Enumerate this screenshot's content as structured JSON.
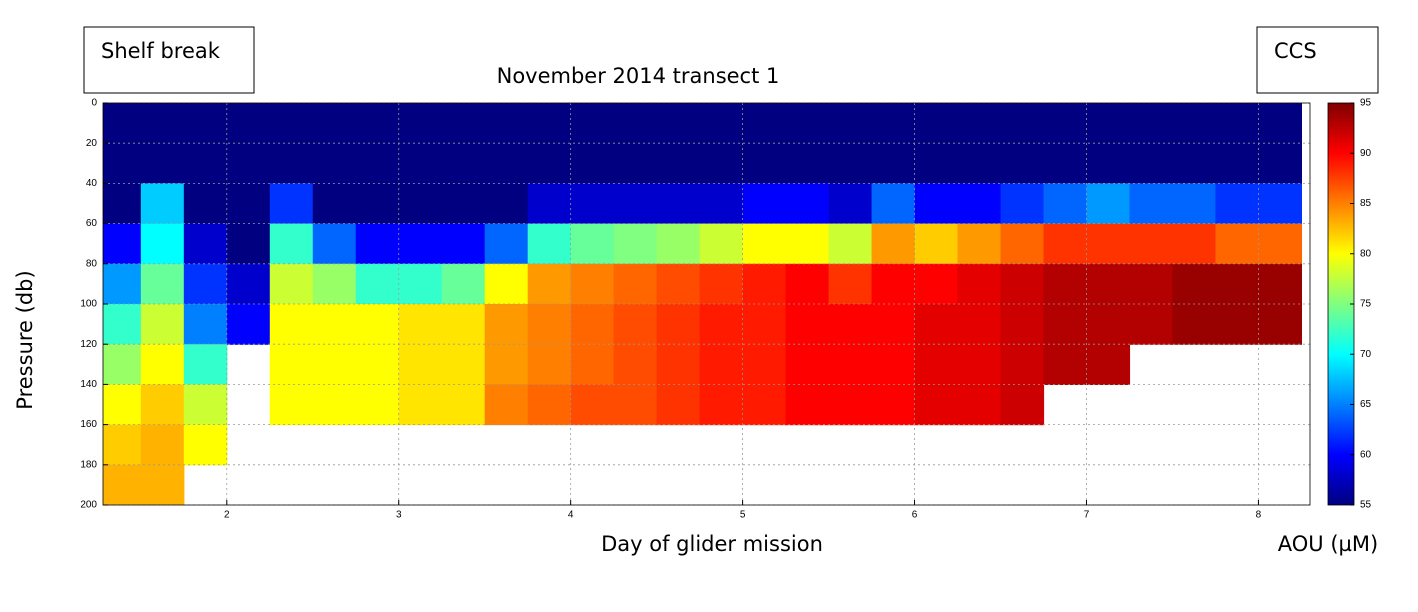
{
  "chart_data": {
    "type": "heatmap",
    "title": "November 2014 transect 1",
    "x_label": "Day of glider mission",
    "y_label": "Pressure (db)",
    "colorbar_label": "AOU (µM)",
    "annotations": [
      "Shelf break",
      "CCS"
    ],
    "x": [
      1.375,
      1.625,
      1.875,
      2.125,
      2.375,
      2.625,
      2.875,
      3.125,
      3.375,
      3.625,
      3.875,
      4.125,
      4.375,
      4.625,
      4.875,
      5.125,
      5.375,
      5.625,
      5.875,
      6.125,
      6.375,
      6.625,
      6.875,
      7.125,
      7.375,
      7.625,
      7.875,
      8.125
    ],
    "y": [
      10,
      30,
      50,
      70,
      90,
      110,
      130,
      150,
      170,
      190
    ],
    "values": [
      [
        55,
        55,
        55,
        60,
        66,
        72,
        76,
        80,
        82,
        83
      ],
      [
        55,
        55,
        68,
        70,
        74,
        78,
        80,
        82,
        83,
        83
      ],
      [
        55,
        55,
        55,
        58,
        62,
        65,
        72,
        78,
        80,
        null
      ],
      [
        55,
        55,
        55,
        55,
        58,
        60,
        null,
        null,
        null,
        null
      ],
      [
        55,
        55,
        62,
        72,
        78,
        80,
        80,
        80,
        null,
        null
      ],
      [
        55,
        55,
        55,
        64,
        76,
        80,
        80,
        80,
        null,
        null
      ],
      [
        55,
        55,
        55,
        60,
        72,
        80,
        80,
        80,
        null,
        null
      ],
      [
        55,
        55,
        55,
        60,
        72,
        81,
        81,
        81,
        null,
        null
      ],
      [
        55,
        55,
        55,
        60,
        74,
        81,
        81,
        81,
        null,
        null
      ],
      [
        55,
        55,
        55,
        64,
        80,
        84,
        84,
        85,
        null,
        null
      ],
      [
        55,
        55,
        58,
        72,
        84,
        85,
        85,
        86,
        null,
        null
      ],
      [
        55,
        55,
        58,
        74,
        85,
        86,
        86,
        87,
        null,
        null
      ],
      [
        55,
        55,
        58,
        75,
        86,
        87,
        87,
        87,
        null,
        null
      ],
      [
        55,
        55,
        58,
        76,
        87,
        88,
        88,
        88,
        null,
        null
      ],
      [
        55,
        55,
        58,
        78,
        88,
        89,
        89,
        89,
        null,
        null
      ],
      [
        55,
        55,
        60,
        80,
        89,
        89,
        89,
        89,
        null,
        null
      ],
      [
        55,
        55,
        60,
        80,
        90,
        90,
        90,
        90,
        null,
        null
      ],
      [
        55,
        55,
        58,
        78,
        88,
        90,
        90,
        90,
        null,
        null
      ],
      [
        55,
        55,
        64,
        84,
        90,
        90,
        90,
        90,
        null,
        null
      ],
      [
        55,
        55,
        60,
        82,
        90,
        91,
        91,
        91,
        null,
        null
      ],
      [
        55,
        55,
        60,
        84,
        91,
        91,
        91,
        91,
        null,
        null
      ],
      [
        55,
        55,
        62,
        86,
        92,
        92,
        92,
        92,
        null,
        null
      ],
      [
        55,
        55,
        64,
        88,
        93,
        93,
        93,
        null,
        null,
        null
      ],
      [
        55,
        55,
        66,
        88,
        93,
        93,
        93,
        null,
        null,
        null
      ],
      [
        55,
        55,
        64,
        88,
        93,
        93,
        null,
        null,
        null,
        null
      ],
      [
        55,
        55,
        64,
        88,
        94,
        94,
        null,
        null,
        null,
        null
      ],
      [
        55,
        55,
        62,
        86,
        94,
        94,
        null,
        null,
        null,
        null
      ],
      [
        55,
        55,
        62,
        86,
        94,
        94,
        null,
        null,
        null,
        null
      ]
    ],
    "xlim": [
      1.28,
      8.3
    ],
    "xticks": [
      2,
      3,
      4,
      5,
      6,
      7,
      8
    ],
    "ylim": [
      0,
      200
    ],
    "yticks": [
      0,
      20,
      40,
      60,
      80,
      100,
      120,
      140,
      160,
      180,
      200
    ],
    "y_inverted": true,
    "clim": [
      55,
      95
    ],
    "cticks": [
      55,
      60,
      65,
      70,
      75,
      80,
      85,
      90,
      95
    ],
    "colormap": "jet",
    "grid": true
  }
}
